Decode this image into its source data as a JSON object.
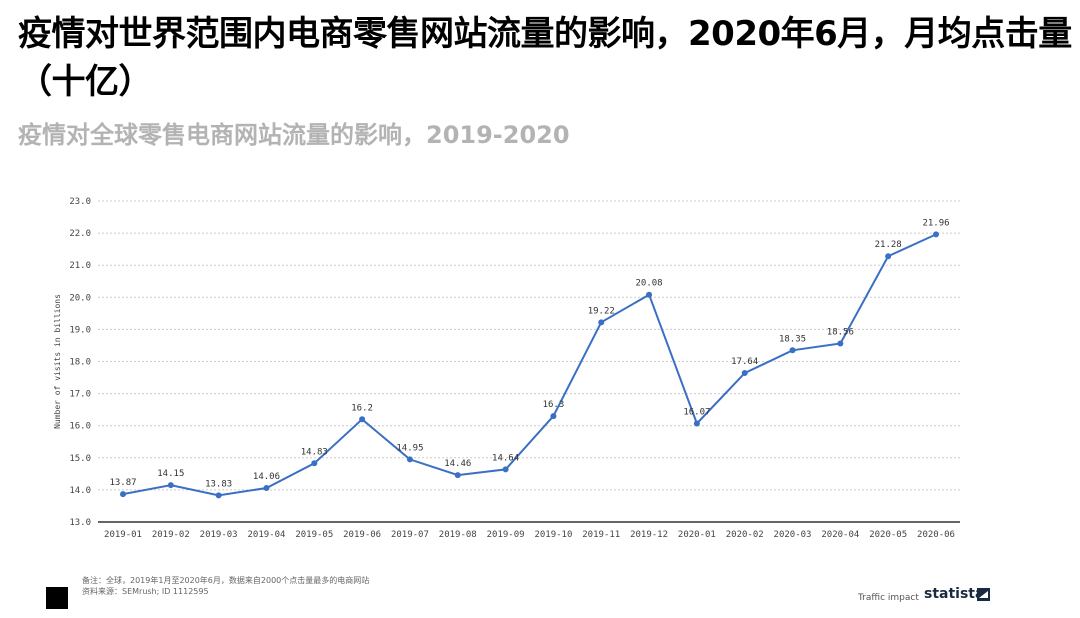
{
  "title": "疫情对世界范围内电商零售网站流量的影响，2020年6月，月均点击量（十亿）",
  "subtitle": "疫情对全球零售电商网站流量的影响，2019-2020",
  "chart_data": {
    "type": "line",
    "ylabel": "Number of visits in billions",
    "xlabel": "",
    "ylim": [
      13.0,
      23.0
    ],
    "yticks": [
      "13.0",
      "14.0",
      "15.0",
      "16.0",
      "17.0",
      "18.0",
      "19.0",
      "20.0",
      "21.0",
      "22.0",
      "23.0"
    ],
    "grid": true,
    "categories": [
      "2019-01",
      "2019-02",
      "2019-03",
      "2019-04",
      "2019-05",
      "2019-06",
      "2019-07",
      "2019-08",
      "2019-09",
      "2019-10",
      "2019-11",
      "2019-12",
      "2020-01",
      "2020-02",
      "2020-03",
      "2020-04",
      "2020-05",
      "2020-06"
    ],
    "values": [
      13.87,
      14.15,
      13.83,
      14.06,
      14.83,
      16.2,
      14.95,
      14.46,
      14.64,
      16.3,
      19.22,
      20.08,
      16.07,
      17.64,
      18.35,
      18.56,
      21.28,
      21.96
    ],
    "labels": [
      "13.87",
      "14.15",
      "13.83",
      "14.06",
      "14.83",
      "16.2",
      "14.95",
      "14.46",
      "14.64",
      "16.3",
      "19.22",
      "20.08",
      "16.07",
      "17.64",
      "18.35",
      "18.56",
      "21.28",
      "21.96"
    ],
    "line_color": "#3a6fc4"
  },
  "footer": {
    "note": "备注：全球，2019年1月至2020年6月，数据来自2000个点击量最多的电商网站",
    "source": "资料来源：SEMrush; ID 1112595",
    "traffic_label": "Traffic impact",
    "brand": "statista"
  }
}
